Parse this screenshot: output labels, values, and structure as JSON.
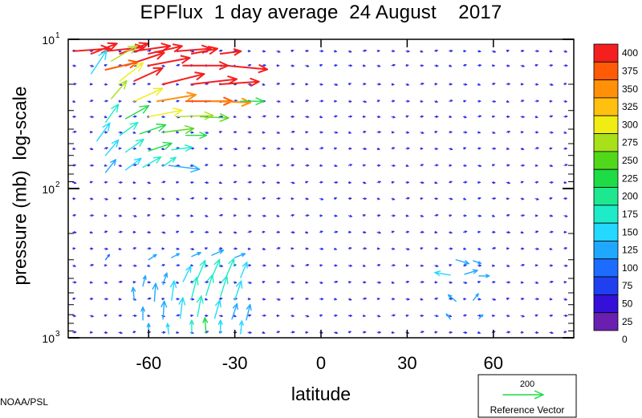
{
  "title": "EPFlux  1 day average  24 August    2017",
  "credit": "NOAA/PSL",
  "colors": {
    "frame": "#000000",
    "text": "#000000",
    "background": "#ffffff",
    "colorbar": [
      "#6a1fb0",
      "#3410d8",
      "#2040f0",
      "#1d6cff",
      "#20a8ff",
      "#24d8ff",
      "#1eecc8",
      "#1de890",
      "#1edc46",
      "#52d81a",
      "#a8e01a",
      "#f0ec14",
      "#ffc010",
      "#ff9008",
      "#ff5a06",
      "#f41f1f"
    ]
  },
  "chart_data": {
    "type": "vector",
    "title": "EPFlux  1 day average  24 August    2017",
    "xlabel": "latitude",
    "ylabel": "pressure (mb)  log-scale",
    "x_range": [
      -88,
      88
    ],
    "y_range": [
      1000,
      10
    ],
    "y_scale": "log",
    "x_ticks": [
      -60,
      -30,
      0,
      30,
      60
    ],
    "x_tick_labels": [
      "-60",
      "-30",
      "0",
      "30",
      "60"
    ],
    "y_ticks": [
      {
        "value": 10,
        "base": "10",
        "exp": "1"
      },
      {
        "value": 100,
        "base": "10",
        "exp": "2"
      },
      {
        "value": 1000,
        "base": "10",
        "exp": "3"
      }
    ],
    "colorbar": {
      "levels": [
        400,
        375,
        350,
        325,
        300,
        275,
        250,
        225,
        200,
        175,
        150,
        125,
        100,
        75,
        50,
        25,
        0
      ],
      "labels": [
        "400",
        "375",
        "350",
        "325",
        "300",
        "275",
        "250",
        "225",
        "200",
        "175",
        "150",
        "125",
        "100",
        "75",
        "50",
        "25",
        "0"
      ]
    },
    "reference_vector": {
      "magnitude": 200,
      "magnitude_label": "200",
      "label": "Reference Vector"
    },
    "levels_mb": [
      12,
      15,
      20,
      26,
      33,
      42,
      54,
      70,
      91,
      117,
      152,
      196,
      253,
      328,
      425,
      550,
      712,
      920
    ],
    "lats": [
      -86,
      -80,
      -75,
      -70,
      -65,
      -60,
      -55,
      -50,
      -45,
      -40,
      -35,
      -30,
      -25,
      -20,
      -15,
      -10,
      -5,
      0,
      5,
      10,
      15,
      20,
      25,
      30,
      35,
      40,
      45,
      50,
      55,
      60,
      65,
      70,
      75,
      80,
      85
    ],
    "strong_vectors": [
      {
        "lat": -86,
        "p": 12,
        "u": 28,
        "v": 2,
        "mag": 410
      },
      {
        "lat": -75,
        "p": 12,
        "u": 30,
        "v": 3,
        "mag": 420
      },
      {
        "lat": -65,
        "p": 12,
        "u": 28,
        "v": 4,
        "mag": 410
      },
      {
        "lat": -50,
        "p": 12,
        "u": 26,
        "v": 2,
        "mag": 400
      },
      {
        "lat": -80,
        "p": 12.5,
        "u": 20,
        "v": 8,
        "mag": 400
      },
      {
        "lat": -70,
        "p": 12.5,
        "u": 22,
        "v": 8,
        "mag": 410
      },
      {
        "lat": -60,
        "p": 12.5,
        "u": 26,
        "v": 6,
        "mag": 420
      },
      {
        "lat": -45,
        "p": 12.5,
        "u": 20,
        "v": 4,
        "mag": 410
      },
      {
        "lat": -35,
        "p": 12.5,
        "u": 16,
        "v": 2,
        "mag": 400
      },
      {
        "lat": -73,
        "p": 14,
        "u": 20,
        "v": 12,
        "mag": 260
      },
      {
        "lat": -68,
        "p": 15,
        "u": 30,
        "v": 10,
        "mag": 400
      },
      {
        "lat": -75,
        "p": 16,
        "u": 25,
        "v": 6,
        "mag": 360
      },
      {
        "lat": -60,
        "p": 15,
        "u": 32,
        "v": 6,
        "mag": 410
      },
      {
        "lat": -48,
        "p": 15,
        "u": 35,
        "v": 0,
        "mag": 420
      },
      {
        "lat": -33,
        "p": 15,
        "u": 32,
        "v": -3,
        "mag": 410
      },
      {
        "lat": -80,
        "p": 17,
        "u": 12,
        "v": 18,
        "mag": 140
      },
      {
        "lat": -70,
        "p": 19,
        "u": 18,
        "v": 14,
        "mag": 280
      },
      {
        "lat": -65,
        "p": 19,
        "u": 22,
        "v": 10,
        "mag": 400
      },
      {
        "lat": -55,
        "p": 20,
        "u": 32,
        "v": 8,
        "mag": 410
      },
      {
        "lat": -45,
        "p": 20,
        "u": 35,
        "v": 4,
        "mag": 420
      },
      {
        "lat": -35,
        "p": 20,
        "u": 30,
        "v": 2,
        "mag": 400
      },
      {
        "lat": -73,
        "p": 25,
        "u": 12,
        "v": 14,
        "mag": 260
      },
      {
        "lat": -65,
        "p": 26,
        "u": 22,
        "v": 10,
        "mag": 290
      },
      {
        "lat": -57,
        "p": 26,
        "u": 30,
        "v": 5,
        "mag": 340
      },
      {
        "lat": -47,
        "p": 26,
        "u": 36,
        "v": 0,
        "mag": 360
      },
      {
        "lat": -38,
        "p": 26,
        "u": 30,
        "v": -1,
        "mag": 330
      },
      {
        "lat": -28,
        "p": 26,
        "u": 18,
        "v": 0,
        "mag": 220
      },
      {
        "lat": -75,
        "p": 36,
        "u": 10,
        "v": 14,
        "mag": 170
      },
      {
        "lat": -68,
        "p": 34,
        "u": 18,
        "v": 10,
        "mag": 220
      },
      {
        "lat": -60,
        "p": 33,
        "u": 26,
        "v": 5,
        "mag": 280
      },
      {
        "lat": -50,
        "p": 33,
        "u": 28,
        "v": 1,
        "mag": 260
      },
      {
        "lat": -42,
        "p": 33,
        "u": 22,
        "v": -1,
        "mag": 240
      },
      {
        "lat": -78,
        "p": 48,
        "u": 10,
        "v": 14,
        "mag": 140
      },
      {
        "lat": -70,
        "p": 44,
        "u": 14,
        "v": 10,
        "mag": 160
      },
      {
        "lat": -63,
        "p": 43,
        "u": 20,
        "v": 7,
        "mag": 220
      },
      {
        "lat": -55,
        "p": 42,
        "u": 24,
        "v": 3,
        "mag": 240
      },
      {
        "lat": -47,
        "p": 44,
        "u": 16,
        "v": 0,
        "mag": 200
      },
      {
        "lat": -75,
        "p": 60,
        "u": 10,
        "v": 12,
        "mag": 130
      },
      {
        "lat": -68,
        "p": 57,
        "u": 14,
        "v": 10,
        "mag": 150
      },
      {
        "lat": -60,
        "p": 56,
        "u": 18,
        "v": 6,
        "mag": 200
      },
      {
        "lat": -52,
        "p": 55,
        "u": 16,
        "v": 2,
        "mag": 170
      },
      {
        "lat": -75,
        "p": 78,
        "u": 8,
        "v": 10,
        "mag": 110
      },
      {
        "lat": -68,
        "p": 75,
        "u": 12,
        "v": 9,
        "mag": 130
      },
      {
        "lat": -62,
        "p": 72,
        "u": 14,
        "v": 8,
        "mag": 150
      },
      {
        "lat": -55,
        "p": 71,
        "u": 10,
        "v": 7,
        "mag": 150
      },
      {
        "lat": -53,
        "p": 70,
        "u": 24,
        "v": -3,
        "mag": 100
      },
      {
        "lat": -75,
        "p": 300,
        "u": 3,
        "v": 4,
        "mag": 90
      },
      {
        "lat": -60,
        "p": 300,
        "u": 6,
        "v": 4,
        "mag": 110
      },
      {
        "lat": -52,
        "p": 290,
        "u": 6,
        "v": 3,
        "mag": 120
      },
      {
        "lat": -45,
        "p": 285,
        "u": 7,
        "v": 3,
        "mag": 120
      },
      {
        "lat": -38,
        "p": 280,
        "u": 9,
        "v": 4,
        "mag": 120
      },
      {
        "lat": -30,
        "p": 290,
        "u": 8,
        "v": 3,
        "mag": 110
      },
      {
        "lat": -62,
        "p": 450,
        "u": 2,
        "v": 8,
        "mag": 100
      },
      {
        "lat": -55,
        "p": 440,
        "u": 3,
        "v": 9,
        "mag": 110
      },
      {
        "lat": -48,
        "p": 420,
        "u": 6,
        "v": 12,
        "mag": 140
      },
      {
        "lat": -43,
        "p": 400,
        "u": 6,
        "v": 14,
        "mag": 150
      },
      {
        "lat": -38,
        "p": 395,
        "u": 6,
        "v": 14,
        "mag": 150
      },
      {
        "lat": -33,
        "p": 390,
        "u": 6,
        "v": 14,
        "mag": 150
      },
      {
        "lat": -28,
        "p": 395,
        "u": 5,
        "v": 12,
        "mag": 130
      },
      {
        "lat": -65,
        "p": 560,
        "u": -1,
        "v": 10,
        "mag": 100
      },
      {
        "lat": -58,
        "p": 570,
        "u": 1,
        "v": 14,
        "mag": 120
      },
      {
        "lat": -52,
        "p": 560,
        "u": 2,
        "v": 15,
        "mag": 140
      },
      {
        "lat": -45,
        "p": 540,
        "u": 4,
        "v": 16,
        "mag": 150
      },
      {
        "lat": -40,
        "p": 520,
        "u": 5,
        "v": 16,
        "mag": 150
      },
      {
        "lat": -35,
        "p": 530,
        "u": 5,
        "v": 16,
        "mag": 150
      },
      {
        "lat": -30,
        "p": 560,
        "u": 5,
        "v": 15,
        "mag": 140
      },
      {
        "lat": -62,
        "p": 760,
        "u": 0,
        "v": 10,
        "mag": 100
      },
      {
        "lat": -55,
        "p": 750,
        "u": 1,
        "v": 14,
        "mag": 120
      },
      {
        "lat": -49,
        "p": 740,
        "u": 2,
        "v": 16,
        "mag": 140
      },
      {
        "lat": -43,
        "p": 720,
        "u": 3,
        "v": 16,
        "mag": 150
      },
      {
        "lat": -37,
        "p": 740,
        "u": 4,
        "v": 14,
        "mag": 140
      },
      {
        "lat": -31,
        "p": 750,
        "u": 4,
        "v": 12,
        "mag": 120
      },
      {
        "lat": -26,
        "p": 760,
        "u": 3,
        "v": 12,
        "mag": 120
      },
      {
        "lat": -60,
        "p": 940,
        "u": 0,
        "v": 8,
        "mag": 110
      },
      {
        "lat": -53,
        "p": 940,
        "u": -1,
        "v": 8,
        "mag": 140
      },
      {
        "lat": -45,
        "p": 930,
        "u": 0,
        "v": 10,
        "mag": 170
      },
      {
        "lat": -40,
        "p": 930,
        "u": -1,
        "v": 12,
        "mag": 210
      },
      {
        "lat": -35,
        "p": 930,
        "u": 0,
        "v": 10,
        "mag": 140
      },
      {
        "lat": -28,
        "p": 940,
        "u": 1,
        "v": 10,
        "mag": 140
      },
      {
        "lat": 45,
        "p": 380,
        "u": -12,
        "v": 2,
        "mag": 130
      },
      {
        "lat": 50,
        "p": 375,
        "u": 10,
        "v": 3,
        "mag": 120
      },
      {
        "lat": 55,
        "p": 385,
        "u": 8,
        "v": 0,
        "mag": 110
      },
      {
        "lat": 47,
        "p": 300,
        "u": 10,
        "v": -3,
        "mag": 120
      },
      {
        "lat": 53,
        "p": 305,
        "u": 6,
        "v": -2,
        "mag": 110
      },
      {
        "lat": 47,
        "p": 570,
        "u": -6,
        "v": 5,
        "mag": 110
      },
      {
        "lat": 53,
        "p": 560,
        "u": 4,
        "v": 5,
        "mag": 100
      },
      {
        "lat": 45,
        "p": 750,
        "u": -3,
        "v": 4,
        "mag": 100
      },
      {
        "lat": 55,
        "p": 745,
        "u": 3,
        "v": 3,
        "mag": 100
      }
    ]
  }
}
